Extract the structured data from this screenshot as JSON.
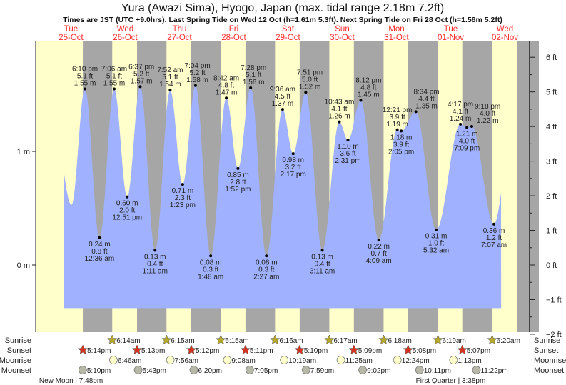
{
  "title": "Yura (Awazi Sima), Hyogo, Japan (max. tidal range 2.18m 7.2ft)",
  "subtitle": "Times are JST (UTC +9.0hrs). Last Spring Tide on Wed 12 Oct (h=1.61m 5.3ft). Next Spring Tide on Fri 28 Oct (h=1.58m 5.2ft)",
  "colors": {
    "day": "#ffffcc",
    "night": "#a6a6a6",
    "water": "#9fb1ff",
    "daylabel": "#ff2a2a",
    "sunrise": "#b5a82a",
    "sunset": "#d4341f",
    "moonrise": "#ffffcc",
    "moonset": "#b8b8a8"
  },
  "days": [
    {
      "name": "Tue",
      "date": "25-Oct"
    },
    {
      "name": "Wed",
      "date": "26-Oct"
    },
    {
      "name": "Thu",
      "date": "27-Oct"
    },
    {
      "name": "Fri",
      "date": "28-Oct"
    },
    {
      "name": "Sat",
      "date": "29-Oct"
    },
    {
      "name": "Sun",
      "date": "30-Oct"
    },
    {
      "name": "Mon",
      "date": "31-Oct"
    },
    {
      "name": "Tue",
      "date": "01-Nov"
    },
    {
      "name": "Wed",
      "date": "02-Nov"
    }
  ],
  "chart_data": {
    "type": "area",
    "title": "Yura (Awazi Sima), Hyogo, Japan (max. tidal range 2.18m 7.2ft)",
    "x_unit": "hours since Tue 25-Oct 00:00 JST",
    "y_unit": "m",
    "ylim_m": [
      -0.59,
      1.97
    ],
    "left_ticks": [
      {
        "v": 1,
        "label": "1 m"
      },
      {
        "v": 0,
        "label": "0 m"
      }
    ],
    "right_ticks": [
      "6 ft",
      "5 ft",
      "4 ft",
      "3 ft",
      "2 ft",
      "1 ft",
      "0 ft",
      "−1 ft",
      "−2 ft"
    ],
    "right_tick_values_ft": [
      6,
      5,
      4,
      3,
      2,
      1,
      0,
      -1,
      -2
    ],
    "curve_start_hours": 9,
    "curve_end_hours": 202.3,
    "extremes": [
      {
        "t": 4.5,
        "m": 1.25,
        "type": "high",
        "labeled": false
      },
      {
        "t": 12.2,
        "m": 0.53,
        "type": "low",
        "labeled": false
      },
      {
        "t": 18.17,
        "m": 1.55,
        "ft": "5.1 ft",
        "time": "6:10 pm",
        "ml": "1.55 m",
        "type": "high",
        "labeled": true
      },
      {
        "t": 24.6,
        "m": 0.24,
        "ft": "0.8 ft",
        "time": "12:36 am",
        "ml": "0.24 m",
        "type": "low",
        "labeled": true
      },
      {
        "t": 31.1,
        "m": 1.55,
        "ft": "5.1 ft",
        "time": "7:06 am",
        "ml": "1.55 m",
        "type": "high",
        "labeled": true
      },
      {
        "t": 36.85,
        "m": 0.6,
        "ft": "2.0 ft",
        "time": "12:51 pm",
        "ml": "0.60 m",
        "type": "low",
        "labeled": true
      },
      {
        "t": 42.62,
        "m": 1.57,
        "ft": "5.2 ft",
        "time": "6:37 pm",
        "ml": "1.57 m",
        "type": "high",
        "labeled": true
      },
      {
        "t": 49.18,
        "m": 0.13,
        "ft": "0.4 ft",
        "time": "1:11 am",
        "ml": "0.13 m",
        "type": "low",
        "labeled": true
      },
      {
        "t": 55.87,
        "m": 1.54,
        "ft": "5.1 ft",
        "time": "7:52 am",
        "ml": "1.54 m",
        "type": "high",
        "labeled": true
      },
      {
        "t": 61.38,
        "m": 0.71,
        "ft": "2.3 ft",
        "time": "1:23 pm",
        "ml": "0.71 m",
        "type": "low",
        "labeled": true
      },
      {
        "t": 67.07,
        "m": 1.58,
        "ft": "5.2 ft",
        "time": "7:04 pm",
        "ml": "1.58 m",
        "type": "high",
        "labeled": true
      },
      {
        "t": 73.8,
        "m": 0.08,
        "ft": "0.3 ft",
        "time": "1:48 am",
        "ml": "0.08 m",
        "type": "low",
        "labeled": true
      },
      {
        "t": 80.7,
        "m": 1.47,
        "ft": "4.8 ft",
        "time": "8:42 am",
        "ml": "1.47 m",
        "type": "high",
        "labeled": true
      },
      {
        "t": 85.87,
        "m": 0.85,
        "ft": "2.8 ft",
        "time": "1:52 pm",
        "ml": "0.85 m",
        "type": "low",
        "labeled": true
      },
      {
        "t": 91.47,
        "m": 1.56,
        "ft": "5.1 ft",
        "time": "7:28 pm",
        "ml": "1.56 m",
        "type": "high",
        "labeled": true
      },
      {
        "t": 98.45,
        "m": 0.08,
        "ft": "0.3 ft",
        "time": "2:27 am",
        "ml": "0.08 m",
        "type": "low",
        "labeled": true
      },
      {
        "t": 105.6,
        "m": 1.37,
        "ft": "4.5 ft",
        "time": "9:36 am",
        "ml": "1.37 m",
        "type": "high",
        "labeled": true
      },
      {
        "t": 110.28,
        "m": 0.98,
        "ft": "3.2 ft",
        "time": "2:17 pm",
        "ml": "0.98 m",
        "type": "low",
        "labeled": true
      },
      {
        "t": 115.85,
        "m": 1.52,
        "ft": "5.0 ft",
        "time": "7:51 pm",
        "ml": "1.52 m",
        "type": "high",
        "labeled": true
      },
      {
        "t": 123.18,
        "m": 0.13,
        "ft": "0.4 ft",
        "time": "3:11 am",
        "ml": "0.13 m",
        "type": "low",
        "labeled": true
      },
      {
        "t": 130.72,
        "m": 1.26,
        "ft": "4.1 ft",
        "time": "10:43 am",
        "ml": "1.26 m",
        "type": "high",
        "labeled": true
      },
      {
        "t": 134.52,
        "m": 1.1,
        "ft": "3.6 ft",
        "time": "2:31 pm",
        "ml": "1.10 m",
        "type": "low",
        "labeled": true
      },
      {
        "t": 140.2,
        "m": 1.45,
        "ft": "4.8 ft",
        "time": "8:12 pm",
        "ml": "1.45 m",
        "type": "high",
        "labeled": true
      },
      {
        "t": 148.15,
        "m": 0.22,
        "ft": "0.7 ft",
        "time": "4:09 am",
        "ml": "0.22 m",
        "type": "low",
        "labeled": true
      },
      {
        "t": 156.35,
        "m": 1.19,
        "ft": "3.9 ft",
        "time": "12:21 pm",
        "ml": "1.19 m",
        "type": "high",
        "labeled": true
      },
      {
        "t": 158.08,
        "m": 1.18,
        "ft": "3.9 ft",
        "time": "2:05 pm",
        "ml": "1.18 m",
        "type": "low",
        "labeled": true
      },
      {
        "t": 164.57,
        "m": 1.35,
        "ft": "4.4 ft",
        "time": "8:34 pm",
        "ml": "1.35 m",
        "type": "high",
        "labeled": true
      },
      {
        "t": 173.53,
        "m": 0.31,
        "ft": "1.0 ft",
        "time": "5:32 am",
        "ml": "0.31 m",
        "type": "low",
        "labeled": true
      },
      {
        "t": 184.28,
        "m": 1.24,
        "ft": "4.1 ft",
        "time": "4:17 pm",
        "ml": "1.24 m",
        "type": "high",
        "labeled": true
      },
      {
        "t": 187.15,
        "m": 1.21,
        "ft": "4.0 ft",
        "time": "7:09 pm",
        "ml": "1.21 m",
        "type": "low",
        "labeled": true
      },
      {
        "t": 189.3,
        "m": 1.22,
        "ft": "4.0 ft",
        "time": "9:18 pm",
        "ml": "1.22 m",
        "type": "high",
        "labeled": true
      },
      {
        "t": 199.12,
        "m": 0.36,
        "ft": "1.2 ft",
        "time": "7:07 am",
        "ml": "0.36 m",
        "type": "low",
        "labeled": true
      },
      {
        "t": 206,
        "m": 1.0,
        "type": "high",
        "labeled": false
      }
    ]
  },
  "almanac": {
    "row_labels": {
      "sunrise": "Sunrise",
      "sunset": "Sunset",
      "moonrise": "Moonrise",
      "moonset": "Moonset"
    },
    "sunrise": [
      {
        "day": 1,
        "time": "6:14am"
      },
      {
        "day": 2,
        "time": "6:15am"
      },
      {
        "day": 3,
        "time": "6:15am"
      },
      {
        "day": 4,
        "time": "6:16am"
      },
      {
        "day": 5,
        "time": "6:17am"
      },
      {
        "day": 6,
        "time": "6:18am"
      },
      {
        "day": 7,
        "time": "6:19am"
      },
      {
        "day": 8,
        "time": "6:20am"
      }
    ],
    "sunset": [
      {
        "day": 0,
        "time": "5:14pm"
      },
      {
        "day": 1,
        "time": "5:13pm"
      },
      {
        "day": 2,
        "time": "5:12pm"
      },
      {
        "day": 3,
        "time": "5:11pm"
      },
      {
        "day": 4,
        "time": "5:10pm"
      },
      {
        "day": 5,
        "time": "5:09pm"
      },
      {
        "day": 6,
        "time": "5:08pm"
      },
      {
        "day": 7,
        "time": "5:07pm"
      }
    ],
    "moonrise": [
      {
        "day": 1,
        "time": "6:46am"
      },
      {
        "day": 2,
        "time": "7:56am"
      },
      {
        "day": 3,
        "time": "9:08am"
      },
      {
        "day": 4,
        "time": "10:19am"
      },
      {
        "day": 5,
        "time": "11:25am"
      },
      {
        "day": 6,
        "time": "12:24pm"
      },
      {
        "day": 7,
        "time": "1:13pm"
      }
    ],
    "moonset": [
      {
        "day": 0,
        "time": "5:10pm"
      },
      {
        "day": 1,
        "time": "5:43pm"
      },
      {
        "day": 2,
        "time": "6:20pm"
      },
      {
        "day": 3,
        "time": "7:05pm"
      },
      {
        "day": 4,
        "time": "7:59pm"
      },
      {
        "day": 5,
        "time": "9:02pm"
      },
      {
        "day": 6,
        "time": "10:11pm"
      },
      {
        "day": 7,
        "time": "11:22pm"
      }
    ],
    "phases": [
      {
        "label": "New Moon | 7:48pm",
        "day": 0
      },
      {
        "label": "First Quarter | 3:38pm",
        "day": 7
      }
    ]
  }
}
